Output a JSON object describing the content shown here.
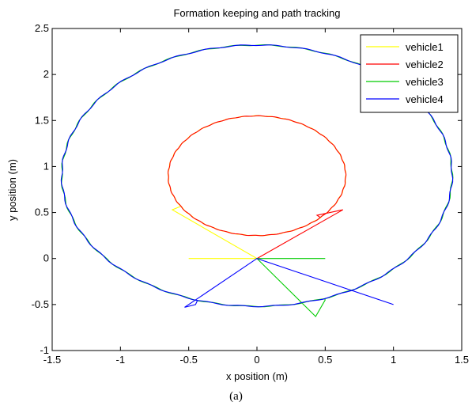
{
  "chart_data": {
    "type": "line",
    "title": "Formation keeping and path tracking",
    "xlabel": "x position (m)",
    "ylabel": "y position (m)",
    "xlim": [
      -1.5,
      1.5
    ],
    "ylim": [
      -1,
      2.5
    ],
    "xticks": [
      "-1.5",
      "-1",
      "-0.5",
      "0",
      "0.5",
      "1",
      "1.5"
    ],
    "yticks": [
      "-1",
      "-0.5",
      "0",
      "0.5",
      "1",
      "1.5",
      "2",
      "2.5"
    ],
    "grid": false,
    "legend_position": "top-right",
    "series": [
      {
        "name": "vehicle1",
        "color": "#ffff00",
        "start": [
          -0.5,
          0.0
        ],
        "turn": [
          0.0,
          0.0
        ],
        "approach": [
          [
            -0.62,
            0.53
          ]
        ],
        "loop": {
          "center": [
            0.0,
            0.9
          ],
          "radius_x": 0.65,
          "radius_y": 0.65
        }
      },
      {
        "name": "vehicle2",
        "color": "#ff0000",
        "start": [
          0.0,
          0.0
        ],
        "turn": [
          0.0,
          0.0
        ],
        "approach": [
          [
            0.63,
            0.53
          ],
          [
            0.44,
            0.47
          ]
        ],
        "loop": {
          "center": [
            0.0,
            0.9
          ],
          "radius_x": 0.65,
          "radius_y": 0.65
        }
      },
      {
        "name": "vehicle3",
        "color": "#00cc00",
        "start": [
          0.5,
          0.0
        ],
        "turn": [
          0.0,
          0.0
        ],
        "approach": [
          [
            0.43,
            -0.63
          ],
          [
            0.5,
            -0.45
          ]
        ],
        "loop": {
          "center": [
            0.0,
            0.9
          ],
          "radius_x": 1.43,
          "radius_y": 1.42
        }
      },
      {
        "name": "vehicle4",
        "color": "#0000ff",
        "start": [
          1.0,
          -0.5
        ],
        "turn": [
          0.0,
          0.0
        ],
        "approach": [
          [
            -0.53,
            -0.53
          ],
          [
            -0.45,
            -0.5
          ]
        ],
        "loop": {
          "center": [
            0.0,
            0.9
          ],
          "radius_x": 1.43,
          "radius_y": 1.42
        }
      }
    ]
  },
  "caption": "(a)"
}
